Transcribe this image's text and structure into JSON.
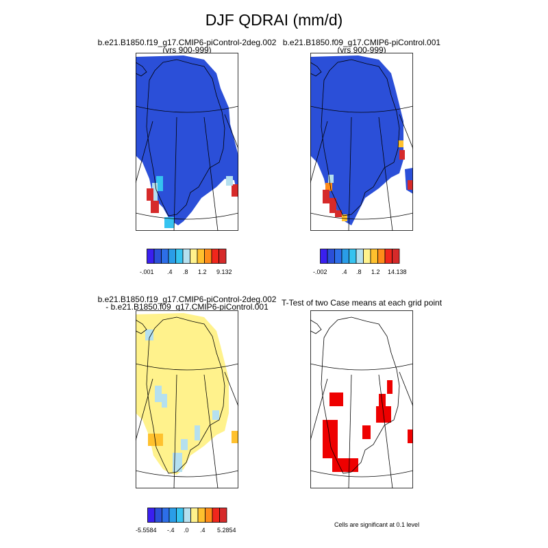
{
  "figure": {
    "title": "DJF QDRAI (mm/d)"
  },
  "panels": [
    {
      "id": "case1",
      "title_lines": [
        "b.e21.B1850.f19_g17.CMIP6-piControl-2deg.002",
        "(yrs 900-999)"
      ]
    },
    {
      "id": "case2",
      "title_lines": [
        "b.e21.B1850.f09_g17.CMIP6-piControl.001",
        "(yrs 900-999)"
      ]
    },
    {
      "id": "diff",
      "title_lines": [
        "b.e21.B1850.f19_g17.CMIP6-piControl-2deg.002",
        "- b.e21.B1850.f09_g17.CMIP6-piControl.001"
      ]
    },
    {
      "id": "ttest",
      "title_lines": [
        "T-Test of two Case means at each grid point"
      ]
    }
  ],
  "colorbars": {
    "case1": {
      "colors": [
        "#3a1ff0",
        "#2b4fd8",
        "#2d6ee8",
        "#2a9de8",
        "#35c3f0",
        "#b5e0ef",
        "#fff28c",
        "#ffc12e",
        "#ff8c1a",
        "#f0261c",
        "#d62a2a"
      ],
      "labels": [
        "-.001",
        ".4",
        ".8",
        "1.2",
        "9.132"
      ]
    },
    "case2": {
      "colors": [
        "#3a1ff0",
        "#2b4fd8",
        "#2d6ee8",
        "#2a9de8",
        "#35c3f0",
        "#b5e0ef",
        "#fff28c",
        "#ffc12e",
        "#ff8c1a",
        "#f0261c",
        "#d62a2a"
      ],
      "labels": [
        "-.002",
        ".4",
        ".8",
        "1.2",
        "14.138"
      ]
    },
    "diff": {
      "colors": [
        "#3a1ff0",
        "#2b4fd8",
        "#2d6ee8",
        "#2a9de8",
        "#35c3f0",
        "#b5e0ef",
        "#fff28c",
        "#ffc12e",
        "#ff8c1a",
        "#f0261c",
        "#d62a2a"
      ],
      "labels": [
        "-5.5584",
        "-.4",
        ".0",
        ".4",
        "5.2854"
      ]
    }
  },
  "significance_note": "Cells are significant at 0.1 level",
  "chart_data": [
    {
      "type": "heatmap",
      "title": "b.e21.B1850.f19_g17.CMIP6-piControl-2deg.002 (yrs 900-999)",
      "variable": "QDRAI",
      "units": "mm/d",
      "season": "DJF",
      "domain": "Greenland",
      "colorbar_labels": [
        "-.001",
        ".4",
        ".8",
        "1.2",
        "9.132"
      ],
      "dominant_range": "-.001 to .4 (blue) over most of the ice sheet",
      "notes": "light blue/cyan cells along southwest margin; red cells (> 1.2) at southwest coast"
    },
    {
      "type": "heatmap",
      "title": "b.e21.B1850.f09_g17.CMIP6-piControl.001 (yrs 900-999)",
      "variable": "QDRAI",
      "units": "mm/d",
      "season": "DJF",
      "domain": "Greenland",
      "colorbar_labels": [
        "-.002",
        ".4",
        ".8",
        "1.2",
        "14.138"
      ],
      "dominant_range": "-.002 to .4 (blue) over most of the ice sheet",
      "notes": "red/orange cells along southwest coast and southern tip; red cells on east coast"
    },
    {
      "type": "heatmap",
      "title": "b.e21.B1850.f19_g17.CMIP6-piControl-2deg.002 - b.e21.B1850.f09_g17.CMIP6-piControl.001",
      "variable": "QDRAI difference",
      "units": "mm/d",
      "season": "DJF",
      "domain": "Greenland",
      "colorbar_labels": [
        "-5.5584",
        "-.4",
        ".0",
        ".4",
        "5.2854"
      ],
      "dominant_range": ".0 to .4 (pale yellow) over most of the ice sheet",
      "notes": "light blue (slightly negative) cells along margins; orange cells at southwest and east coast"
    },
    {
      "type": "heatmap",
      "title": "T-Test of two Case means at each grid point",
      "significance_level": 0.1,
      "notes": "red cells mark significance along west coast, south tip and east coast"
    }
  ]
}
